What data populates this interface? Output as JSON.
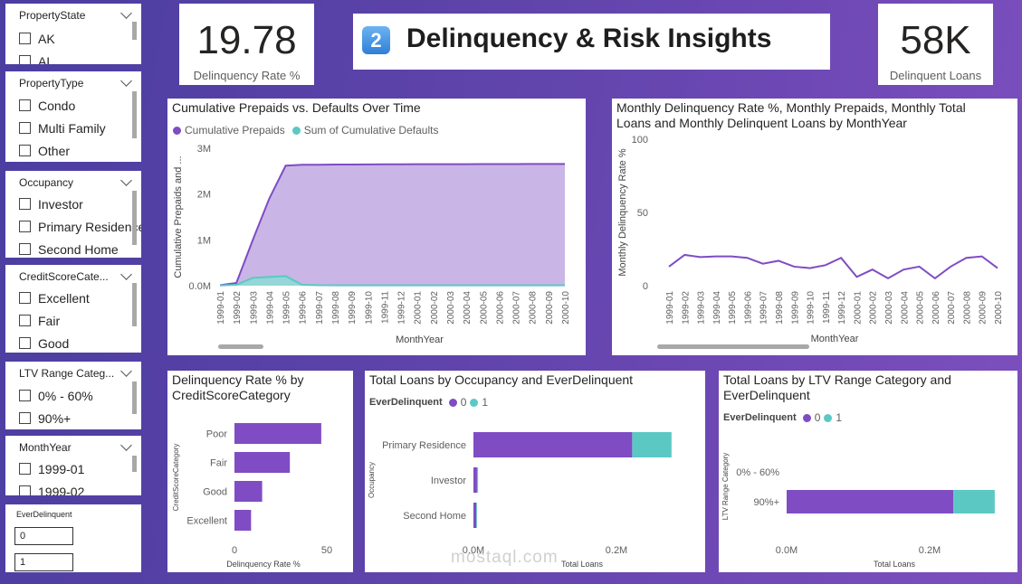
{
  "colors": {
    "purple": "#7f4cc3",
    "purple_fill": "#c9b6e6",
    "teal": "#5bc8c4"
  },
  "slicers": [
    {
      "title": "PropertyState",
      "items": [
        "AK",
        "AL"
      ]
    },
    {
      "title": "PropertyType",
      "items": [
        "Condo",
        "Multi Family",
        "Other"
      ]
    },
    {
      "title": "Occupancy",
      "items": [
        "Investor",
        "Primary Residence",
        "Second Home"
      ]
    },
    {
      "title": "CreditScoreCate...",
      "items": [
        "Excellent",
        "Fair",
        "Good"
      ]
    },
    {
      "title": "LTV Range Categ...",
      "items": [
        "0% - 60%",
        "90%+"
      ]
    },
    {
      "title": "MonthYear",
      "items": [
        "1999-01",
        "1999-02"
      ]
    }
  ],
  "ever_delinquent": {
    "title": "EverDelinquent",
    "values": [
      "0",
      "1"
    ]
  },
  "kpi_left": {
    "value": "19.78",
    "label": "Delinquency Rate %"
  },
  "kpi_right": {
    "value": "58K",
    "label": "Delinquent Loans"
  },
  "header": {
    "icon": "2",
    "title": "Delinquency & Risk Insights"
  },
  "watermark": {
    "text": "mostaql.com"
  },
  "chart_data": [
    {
      "type": "area",
      "title": "Cumulative Prepaids vs. Defaults Over Time",
      "xlabel": "MonthYear",
      "ylabel": "Cumulative Prepaids and ...",
      "ylim": [
        0,
        3000000
      ],
      "yticks": [
        "0.0M",
        "1M",
        "2M",
        "3M"
      ],
      "x": [
        "1999-01",
        "1999-02",
        "1999-03",
        "1999-04",
        "1999-05",
        "1999-06",
        "1999-07",
        "1999-08",
        "1999-09",
        "1999-10",
        "1999-11",
        "1999-12",
        "2000-01",
        "2000-02",
        "2000-03",
        "2000-04",
        "2000-05",
        "2000-06",
        "2000-07",
        "2000-08",
        "2000-09",
        "2000-10"
      ],
      "series": [
        {
          "name": "Cumulative Prepaids",
          "values": [
            10000,
            60000,
            1000000,
            1900000,
            2620000,
            2640000,
            2640000,
            2645000,
            2645000,
            2648000,
            2650000,
            2650000,
            2652000,
            2652000,
            2653000,
            2653000,
            2654000,
            2655000,
            2655000,
            2656000,
            2657000,
            2658000
          ]
        },
        {
          "name": "Sum of Cumulative Defaults",
          "values": [
            5000,
            20000,
            170000,
            190000,
            210000,
            20000,
            10000,
            8000,
            8000,
            8000,
            8000,
            8000,
            8000,
            8000,
            8000,
            8000,
            8000,
            8000,
            8000,
            8000,
            8000,
            8000
          ]
        }
      ]
    },
    {
      "type": "line",
      "title": "Monthly Delinquency Rate %, Monthly Prepaids, Monthly Total Loans and Monthly Delinquent Loans by MonthYear",
      "xlabel": "MonthYear",
      "ylabel": "Monthly Delinquency Rate %",
      "ylim": [
        0,
        100
      ],
      "yticks": [
        "0",
        "50",
        "100"
      ],
      "x": [
        "1999-01",
        "1999-02",
        "1999-03",
        "1999-04",
        "1999-05",
        "1999-06",
        "1999-07",
        "1999-08",
        "1999-09",
        "1999-10",
        "1999-11",
        "1999-12",
        "2000-01",
        "2000-02",
        "2000-03",
        "2000-04",
        "2000-05",
        "2000-06",
        "2000-07",
        "2000-08",
        "2000-09",
        "2000-10"
      ],
      "series": [
        {
          "name": "Monthly Delinquency Rate %",
          "values": [
            13,
            21,
            19.5,
            20,
            20,
            19,
            15,
            17,
            13,
            12,
            14,
            19,
            6,
            11,
            5,
            11,
            13,
            5,
            13,
            19,
            20,
            12
          ]
        }
      ]
    },
    {
      "type": "bar",
      "title": "Delinquency Rate % by CreditScoreCategory",
      "xlabel": "Delinquency Rate %",
      "ylabel": "CreditScoreCategory",
      "xlim": [
        0,
        50
      ],
      "xticks": [
        "0",
        "50"
      ],
      "categories": [
        "Poor",
        "Fair",
        "Good",
        "Excellent"
      ],
      "values": [
        47,
        30,
        15,
        9
      ]
    },
    {
      "type": "bar",
      "title": "Total Loans by Occupancy and EverDelinquent",
      "legend_title": "EverDelinquent",
      "xlabel": "Total Loans",
      "ylabel": "Occupancy",
      "xlim": [
        0,
        300000
      ],
      "xticks": [
        "0.0M",
        "0.2M"
      ],
      "categories": [
        "Primary Residence",
        "Investor",
        "Second Home"
      ],
      "series": [
        {
          "name": "0",
          "values": [
            222000,
            5000,
            4000
          ]
        },
        {
          "name": "1",
          "values": [
            55000,
            1500,
            1000
          ]
        }
      ]
    },
    {
      "type": "bar",
      "title": "Total Loans by LTV Range Category and EverDelinquent",
      "legend_title": "EverDelinquent",
      "xlabel": "Total Loans",
      "ylabel": "LTV Range Category",
      "xlim": [
        0,
        300000
      ],
      "xticks": [
        "0.0M",
        "0.2M"
      ],
      "categories": [
        "0% - 60%",
        "90%+"
      ],
      "series": [
        {
          "name": "0",
          "values": [
            0,
            233000
          ]
        },
        {
          "name": "1",
          "values": [
            0,
            58000
          ]
        }
      ]
    }
  ]
}
